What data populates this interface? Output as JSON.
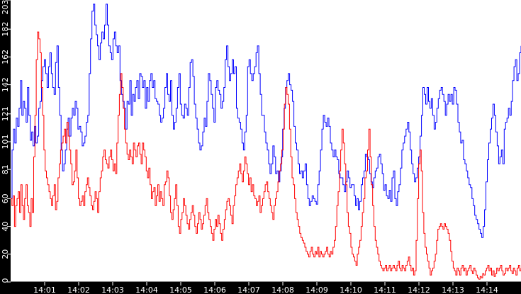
{
  "chart_data": {
    "type": "line",
    "title": "",
    "xlabel": "",
    "ylabel": "",
    "ylim": [
      0,
      203
    ],
    "grid": false,
    "legend": null,
    "y_ticks": [
      0,
      20,
      40,
      60,
      81,
      101,
      121,
      142,
      162,
      182,
      203
    ],
    "x_ticks": [
      "14:01",
      "14:02",
      "14:03",
      "14:04",
      "14:05",
      "14:06",
      "14:07",
      "14:08",
      "14:09",
      "14:10",
      "14:11",
      "14:12",
      "14:13",
      "14:14"
    ],
    "x_range_minutes": [
      0,
      15
    ],
    "sample_interval_seconds": 6,
    "colors": {
      "background": "#000000",
      "plot": "#ffffff",
      "axis_text": "#ffffff",
      "series_blue": "#0000ff",
      "series_red": "#ff0000"
    },
    "series": [
      {
        "name": "blue",
        "color": "#0000ff",
        "values": [
          60,
          95,
          110,
          100,
          118,
          112,
          125,
          145,
          120,
          130,
          125,
          115,
          140,
          120,
          102,
          108,
          98,
          112,
          100,
          105,
          125,
          130,
          145,
          155,
          160,
          150,
          140,
          155,
          165,
          150,
          140,
          135,
          158,
          170,
          140,
          120,
          95,
          80,
          85,
          95,
          110,
          118,
          105,
          118,
          125,
          120,
          130,
          125,
          110,
          112,
          108,
          98,
          100,
          105,
          115,
          120,
          150,
          175,
          195,
          200,
          185,
          178,
          170,
          160,
          172,
          180,
          175,
          185,
          200,
          185,
          170,
          165,
          160,
          175,
          180,
          170,
          165,
          170,
          145,
          135,
          130,
          125,
          110,
          130,
          128,
          145,
          120,
          135,
          130,
          140,
          145,
          132,
          150,
          148,
          140,
          145,
          125,
          140,
          130,
          145,
          150,
          140,
          145,
          132,
          130,
          128,
          120,
          115,
          118,
          125,
          140,
          150,
          135,
          130,
          145,
          120,
          110,
          115,
          125,
          140,
          150,
          128,
          120,
          118,
          128,
          125,
          120,
          140,
          158,
          160,
          148,
          128,
          118,
          110,
          100,
          95,
          98,
          108,
          118,
          112,
          130,
          150,
          145,
          135,
          125,
          115,
          140,
          145,
          138,
          135,
          125,
          130,
          140,
          160,
          170,
          155,
          145,
          150,
          160,
          150,
          155,
          125,
          118,
          115,
          110,
          100,
          95,
          108,
          120,
          155,
          160,
          150,
          145,
          150,
          155,
          165,
          170,
          150,
          135,
          120,
          120,
          108,
          100,
          95,
          85,
          78,
          85,
          98,
          90,
          78,
          80,
          72,
          80,
          90,
          110,
          125,
          140,
          145,
          150,
          142,
          138,
          130,
          112,
          100,
          95,
          85,
          78,
          80,
          75,
          80,
          85,
          70,
          60,
          55,
          58,
          62,
          60,
          58,
          56,
          70,
          80,
          95,
          110,
          120,
          115,
          112,
          118,
          112,
          100,
          95,
          90,
          95,
          90,
          88,
          78,
          75,
          75,
          70,
          65,
          72,
          80,
          75,
          68,
          70,
          70,
          62,
          55,
          60,
          52,
          58,
          70,
          75,
          80,
          92,
          90,
          88,
          78,
          72,
          68,
          75,
          80,
          82,
          90,
          92,
          85,
          78,
          66,
          70,
          62,
          60,
          66,
          58,
          75,
          80,
          60,
          55,
          65,
          70,
          82,
          95,
          100,
          105,
          110,
          115,
          108,
          95,
          85,
          78,
          72,
          75,
          82,
          90,
          105,
          120,
          140,
          135,
          128,
          140,
          130,
          125,
          132,
          120,
          110,
          115,
          125,
          132,
          138,
          140,
          135,
          130,
          120,
          128,
          135,
          130,
          135,
          128,
          140,
          138,
          128,
          115,
          108,
          100,
          102,
          88,
          85,
          80,
          75,
          70,
          68,
          60,
          55,
          48,
          45,
          42,
          38,
          35,
          32,
          40,
          52,
          72,
          88,
          100,
          110,
          118,
          128,
          120,
          108,
          98,
          85,
          90,
          95,
          85,
          110,
          115,
          118,
          125,
          120,
          130,
          145,
          155,
          160,
          145,
          150,
          165,
          170
        ]
      },
      {
        "name": "red",
        "color": "#ff0000",
        "values": [
          60,
          55,
          62,
          40,
          55,
          60,
          65,
          50,
          70,
          55,
          45,
          60,
          70,
          55,
          50,
          40,
          60,
          50,
          90,
          120,
          160,
          180,
          175,
          165,
          140,
          120,
          95,
          80,
          75,
          70,
          65,
          60,
          55,
          62,
          70,
          52,
          58,
          75,
          85,
          95,
          100,
          105,
          110,
          100,
          115,
          105,
          95,
          85,
          70,
          72,
          80,
          95,
          75,
          60,
          55,
          58,
          62,
          55,
          65,
          70,
          75,
          68,
          62,
          55,
          52,
          58,
          65,
          60,
          50,
          65,
          75,
          80,
          90,
          95,
          88,
          85,
          82,
          90,
          95,
          88,
          80,
          85,
          78,
          100,
          120,
          135,
          150,
          140,
          125,
          110,
          100,
          92,
          88,
          95,
          90,
          85,
          100,
          95,
          90,
          98,
          100,
          92,
          85,
          100,
          95,
          90,
          80,
          75,
          82,
          70,
          60,
          65,
          68,
          55,
          62,
          70,
          58,
          65,
          60,
          55,
          70,
          72,
          80,
          75,
          62,
          50,
          45,
          52,
          60,
          70,
          55,
          40,
          35,
          45,
          50,
          60,
          55,
          48,
          42,
          38,
          45,
          50,
          55,
          48,
          40,
          35,
          42,
          50,
          45,
          38,
          42,
          48,
          55,
          60,
          50,
          45,
          40,
          35,
          30,
          38,
          45,
          40,
          48,
          42,
          35,
          30,
          38,
          45,
          52,
          58,
          60,
          55,
          48,
          42,
          55,
          62,
          70,
          75,
          80,
          85,
          78,
          72,
          80,
          90,
          85,
          78,
          70,
          75,
          65,
          70,
          62,
          60,
          55,
          58,
          62,
          50,
          55,
          60,
          65,
          70,
          72,
          65,
          60,
          55,
          50,
          45,
          55,
          60,
          65,
          72,
          80,
          85,
          95,
          110,
          128,
          140,
          135,
          128,
          110,
          90,
          75,
          70,
          60,
          50,
          45,
          40,
          35,
          32,
          30,
          28,
          25,
          22,
          20,
          18,
          22,
          25,
          20,
          18,
          22,
          20,
          25,
          18,
          22,
          20,
          18,
          20,
          22,
          25,
          20,
          18,
          22,
          20,
          25,
          30,
          40,
          55,
          65,
          80,
          95,
          110,
          100,
          85,
          70,
          50,
          40,
          35,
          25,
          20,
          18,
          15,
          12,
          20,
          25,
          30,
          40,
          50,
          60,
          75,
          80,
          95,
          110,
          90,
          70,
          55,
          40,
          30,
          25,
          20,
          15,
          12,
          10,
          8,
          10,
          12,
          8,
          10,
          12,
          8,
          10,
          12,
          10,
          8,
          12,
          15,
          10,
          8,
          12,
          10,
          8,
          12,
          15,
          18,
          12,
          8,
          10,
          5,
          8,
          30,
          60,
          85,
          95,
          80,
          50,
          35,
          25,
          20,
          15,
          10,
          5,
          8,
          10,
          15,
          20,
          30,
          38,
          40,
          42,
          40,
          38,
          42,
          40,
          38,
          35,
          30,
          22,
          15,
          10,
          8,
          5,
          10,
          8,
          5,
          10,
          12,
          8,
          10,
          5,
          8,
          10,
          12,
          8,
          6,
          10,
          8,
          5,
          3,
          2,
          4,
          3,
          6,
          5,
          8,
          10,
          12,
          8,
          10,
          5,
          8,
          4,
          6,
          10,
          8,
          10,
          12,
          8,
          5,
          6,
          10,
          8,
          10,
          12,
          8,
          6,
          10,
          8,
          5,
          10,
          12,
          8,
          10
        ]
      }
    ]
  }
}
